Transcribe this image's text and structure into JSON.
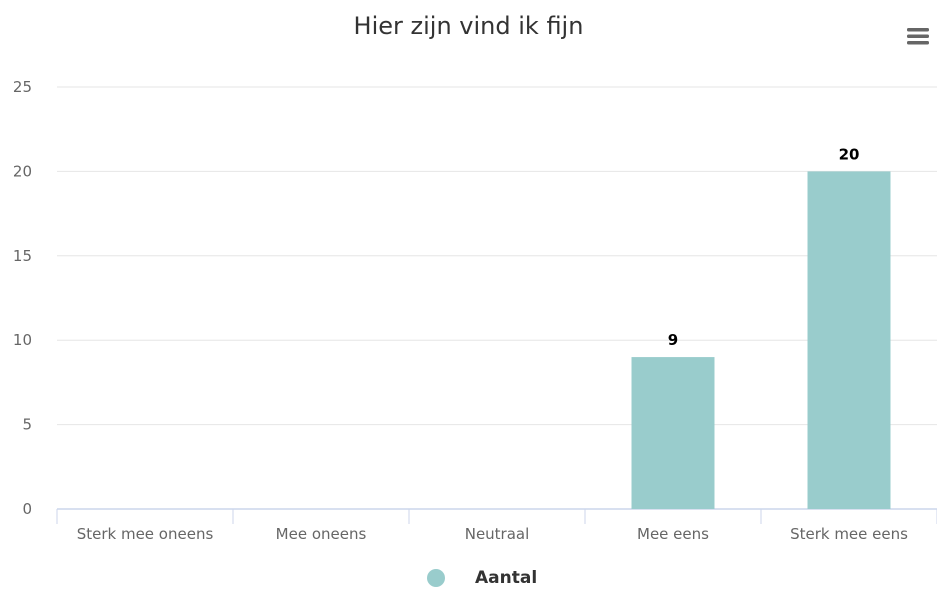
{
  "chart_data": {
    "type": "bar",
    "title": "Hier zijn vind ik fijn",
    "categories": [
      "Sterk mee oneens",
      "Mee oneens",
      "Neutraal",
      "Mee eens",
      "Sterk mee eens"
    ],
    "series": [
      {
        "name": "Aantal",
        "values": [
          0,
          0,
          0,
          9,
          20
        ]
      }
    ],
    "data_labels": [
      "",
      "",
      "",
      "9",
      "20"
    ],
    "ylim": [
      0,
      25
    ],
    "yticks": [
      0,
      5,
      10,
      15,
      20,
      25
    ],
    "grid": true,
    "legend": "bottom-center",
    "xlabel": "",
    "ylabel": ""
  },
  "colors": {
    "bar": "#99cccc",
    "grid": "#e6e6e6",
    "axis": "#ccd6eb",
    "tick_text": "#666666",
    "data_label": "#000000"
  },
  "icons": {
    "menu": "hamburger-menu-icon"
  }
}
